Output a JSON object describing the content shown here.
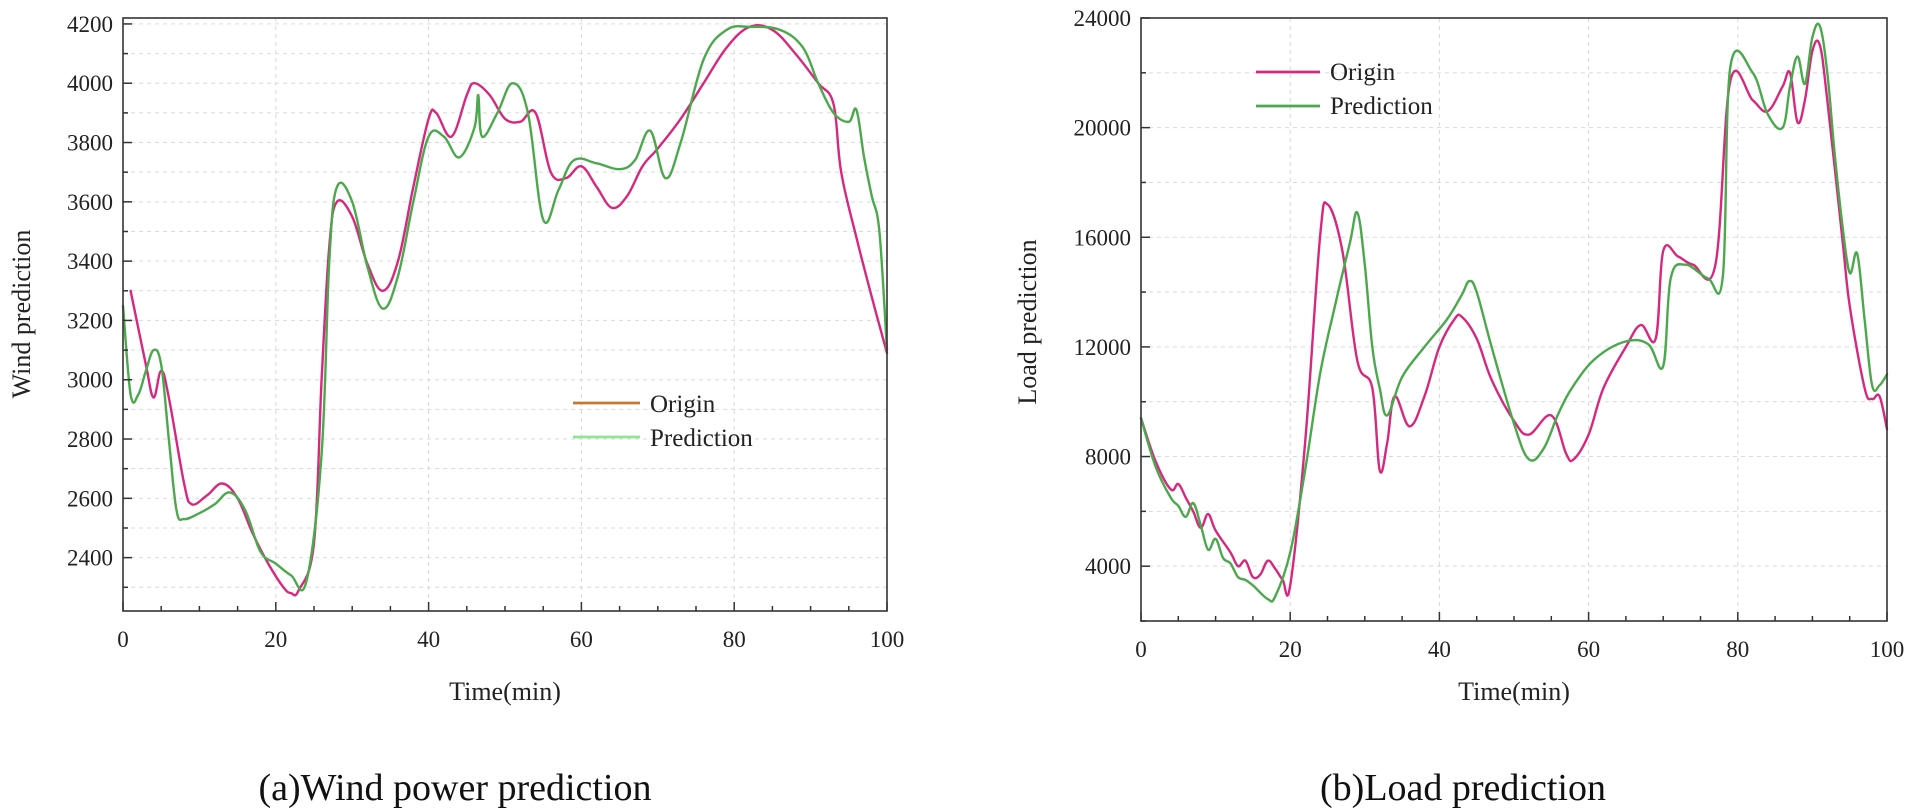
{
  "chart_data": [
    {
      "id": "wind",
      "type": "line",
      "title": "",
      "caption": "(a)Wind power prediction",
      "xlabel": "Time(min)",
      "ylabel": "Wind prediction",
      "xlim": [
        0,
        100
      ],
      "ylim": [
        2220,
        4220
      ],
      "xticks": [
        0,
        20,
        40,
        60,
        80,
        100
      ],
      "yticks": [
        2400,
        2600,
        2800,
        3000,
        3200,
        3400,
        3600,
        3800,
        4000,
        4200
      ],
      "grid": true,
      "legend_position": "center-right",
      "series": [
        {
          "name": "Origin",
          "legend_color": "#c8782a",
          "color": "#d6287f",
          "points": [
            [
              1,
              3300
            ],
            [
              3,
              3050
            ],
            [
              4,
              2940
            ],
            [
              5,
              3030
            ],
            [
              6,
              2940
            ],
            [
              8,
              2650
            ],
            [
              9,
              2580
            ],
            [
              11,
              2610
            ],
            [
              13,
              2650
            ],
            [
              15,
              2600
            ],
            [
              17,
              2480
            ],
            [
              19,
              2380
            ],
            [
              21,
              2300
            ],
            [
              22,
              2280
            ],
            [
              23,
              2290
            ],
            [
              25,
              2450
            ],
            [
              26,
              3000
            ],
            [
              27,
              3450
            ],
            [
              28,
              3600
            ],
            [
              30,
              3550
            ],
            [
              32,
              3390
            ],
            [
              34,
              3300
            ],
            [
              36,
              3400
            ],
            [
              38,
              3650
            ],
            [
              40,
              3880
            ],
            [
              41,
              3900
            ],
            [
              43,
              3820
            ],
            [
              45,
              3960
            ],
            [
              46,
              4000
            ],
            [
              48,
              3960
            ],
            [
              50,
              3880
            ],
            [
              52,
              3870
            ],
            [
              54,
              3900
            ],
            [
              56,
              3700
            ],
            [
              58,
              3680
            ],
            [
              60,
              3720
            ],
            [
              62,
              3650
            ],
            [
              64,
              3580
            ],
            [
              66,
              3620
            ],
            [
              68,
              3720
            ],
            [
              70,
              3780
            ],
            [
              73,
              3880
            ],
            [
              76,
              4000
            ],
            [
              79,
              4120
            ],
            [
              82,
              4190
            ],
            [
              85,
              4180
            ],
            [
              88,
              4100
            ],
            [
              91,
              4000
            ],
            [
              93,
              3930
            ],
            [
              94,
              3700
            ],
            [
              96,
              3480
            ],
            [
              98,
              3280
            ],
            [
              100,
              3090
            ]
          ]
        },
        {
          "name": "Prediction",
          "legend_color": "#8ee68e",
          "color": "#4ca84c",
          "points": [
            [
              0,
              3250
            ],
            [
              1,
              2950
            ],
            [
              2,
              2950
            ],
            [
              3,
              3030
            ],
            [
              4,
              3100
            ],
            [
              5,
              3050
            ],
            [
              6,
              2800
            ],
            [
              7,
              2560
            ],
            [
              8,
              2530
            ],
            [
              10,
              2550
            ],
            [
              12,
              2580
            ],
            [
              14,
              2620
            ],
            [
              16,
              2560
            ],
            [
              18,
              2420
            ],
            [
              20,
              2380
            ],
            [
              22,
              2340
            ],
            [
              24,
              2320
            ],
            [
              26,
              2750
            ],
            [
              27,
              3400
            ],
            [
              28,
              3650
            ],
            [
              30,
              3600
            ],
            [
              32,
              3380
            ],
            [
              34,
              3240
            ],
            [
              36,
              3350
            ],
            [
              38,
              3600
            ],
            [
              40,
              3820
            ],
            [
              42,
              3820
            ],
            [
              44,
              3750
            ],
            [
              46,
              3850
            ],
            [
              46.5,
              3960
            ],
            [
              47,
              3820
            ],
            [
              49,
              3900
            ],
            [
              51,
              4000
            ],
            [
              53,
              3900
            ],
            [
              55,
              3540
            ],
            [
              57,
              3640
            ],
            [
              59,
              3740
            ],
            [
              62,
              3730
            ],
            [
              65,
              3710
            ],
            [
              67,
              3740
            ],
            [
              69,
              3840
            ],
            [
              71,
              3680
            ],
            [
              73,
              3800
            ],
            [
              76,
              4080
            ],
            [
              79,
              4180
            ],
            [
              82,
              4190
            ],
            [
              86,
              4180
            ],
            [
              89,
              4120
            ],
            [
              91,
              4000
            ],
            [
              93,
              3900
            ],
            [
              95,
              3870
            ],
            [
              96,
              3910
            ],
            [
              97,
              3750
            ],
            [
              98,
              3620
            ],
            [
              99,
              3500
            ],
            [
              100,
              3100
            ]
          ]
        }
      ]
    },
    {
      "id": "load",
      "type": "line",
      "title": "",
      "caption": "(b)Load prediction",
      "xlabel": "Time(min)",
      "ylabel": "Load prediction",
      "xlim": [
        0,
        100
      ],
      "ylim": [
        2000,
        24000
      ],
      "xticks": [
        0,
        20,
        40,
        60,
        80,
        100
      ],
      "yticks": [
        4000,
        8000,
        12000,
        16000,
        20000,
        24000
      ],
      "grid": true,
      "legend_position": "top-left",
      "series": [
        {
          "name": "Origin",
          "legend_color": "#d6287f",
          "color": "#d6287f",
          "points": [
            [
              0,
              9400
            ],
            [
              2,
              7800
            ],
            [
              4,
              6800
            ],
            [
              5,
              7000
            ],
            [
              6,
              6500
            ],
            [
              7,
              6000
            ],
            [
              8,
              5400
            ],
            [
              9,
              5900
            ],
            [
              10,
              5300
            ],
            [
              12,
              4500
            ],
            [
              13,
              4000
            ],
            [
              14,
              4200
            ],
            [
              15,
              3600
            ],
            [
              16,
              3700
            ],
            [
              17,
              4200
            ],
            [
              18,
              3900
            ],
            [
              19,
              3500
            ],
            [
              20,
              3300
            ],
            [
              22,
              8500
            ],
            [
              24,
              16000
            ],
            [
              25,
              17200
            ],
            [
              27,
              15500
            ],
            [
              29,
              11500
            ],
            [
              31,
              10500
            ],
            [
              32,
              7500
            ],
            [
              33,
              8500
            ],
            [
              34,
              10200
            ],
            [
              36,
              9100
            ],
            [
              38,
              10200
            ],
            [
              40,
              12000
            ],
            [
              42,
              13000
            ],
            [
              43,
              13100
            ],
            [
              45,
              12300
            ],
            [
              47,
              10800
            ],
            [
              50,
              9300
            ],
            [
              52,
              8800
            ],
            [
              55,
              9500
            ],
            [
              57,
              8100
            ],
            [
              58,
              7900
            ],
            [
              60,
              8800
            ],
            [
              62,
              10500
            ],
            [
              65,
              12000
            ],
            [
              67,
              12800
            ],
            [
              69,
              12300
            ],
            [
              70,
              15500
            ],
            [
              72,
              15300
            ],
            [
              74,
              15000
            ],
            [
              77,
              15000
            ],
            [
              79,
              21700
            ],
            [
              82,
              21000
            ],
            [
              84,
              20600
            ],
            [
              86,
              21500
            ],
            [
              87,
              22000
            ],
            [
              88,
              20200
            ],
            [
              89,
              21000
            ],
            [
              90,
              22800
            ],
            [
              91,
              23000
            ],
            [
              92,
              21000
            ],
            [
              94,
              16000
            ],
            [
              95,
              13500
            ],
            [
              97,
              10500
            ],
            [
              98,
              10100
            ],
            [
              99,
              10200
            ],
            [
              100,
              9000
            ]
          ]
        },
        {
          "name": "Prediction",
          "legend_color": "#4ca84c",
          "color": "#4ca84c",
          "points": [
            [
              0,
              9400
            ],
            [
              2,
              7600
            ],
            [
              4,
              6500
            ],
            [
              5,
              6200
            ],
            [
              6,
              5800
            ],
            [
              7,
              6300
            ],
            [
              8,
              5500
            ],
            [
              9,
              4600
            ],
            [
              10,
              5000
            ],
            [
              11,
              4300
            ],
            [
              12,
              4100
            ],
            [
              13,
              3600
            ],
            [
              14,
              3500
            ],
            [
              15,
              3300
            ],
            [
              17,
              2800
            ],
            [
              18,
              2900
            ],
            [
              20,
              4500
            ],
            [
              22,
              7500
            ],
            [
              24,
              11000
            ],
            [
              26,
              13500
            ],
            [
              28,
              15800
            ],
            [
              29,
              16900
            ],
            [
              30,
              15000
            ],
            [
              31,
              12000
            ],
            [
              32,
              10500
            ],
            [
              33,
              9500
            ],
            [
              35,
              10900
            ],
            [
              38,
              12000
            ],
            [
              41,
              13000
            ],
            [
              43,
              13900
            ],
            [
              44,
              14400
            ],
            [
              45,
              14000
            ],
            [
              47,
              12000
            ],
            [
              50,
              9200
            ],
            [
              52,
              7900
            ],
            [
              54,
              8300
            ],
            [
              56,
              9600
            ],
            [
              58,
              10600
            ],
            [
              61,
              11600
            ],
            [
              65,
              12200
            ],
            [
              68,
              12100
            ],
            [
              70,
              11300
            ],
            [
              71,
              14500
            ],
            [
              73,
              15000
            ],
            [
              76,
              14500
            ],
            [
              78,
              14600
            ],
            [
              79,
              22200
            ],
            [
              82,
              22000
            ],
            [
              84,
              20500
            ],
            [
              86,
              20000
            ],
            [
              87,
              21500
            ],
            [
              88,
              22600
            ],
            [
              89,
              21600
            ],
            [
              90,
              23300
            ],
            [
              91,
              23700
            ],
            [
              92,
              22000
            ],
            [
              93,
              19000
            ],
            [
              94,
              16500
            ],
            [
              95,
              14700
            ],
            [
              96,
              15400
            ],
            [
              97,
              13000
            ],
            [
              98,
              10600
            ],
            [
              99,
              10600
            ],
            [
              100,
              11000
            ]
          ]
        }
      ]
    }
  ]
}
